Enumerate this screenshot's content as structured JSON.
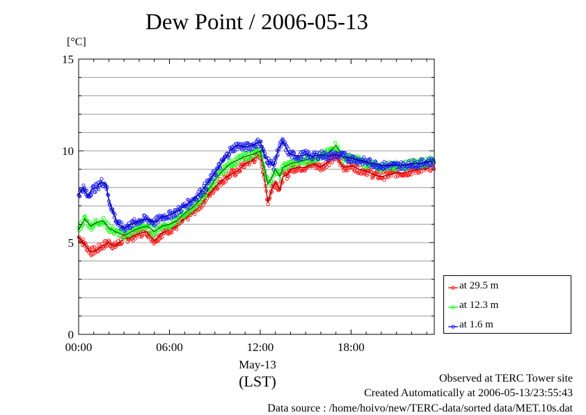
{
  "chart_data": {
    "type": "line",
    "title": "Dew Point / 2006-05-13",
    "ylabel": "[°C]",
    "xlabel_date": "May-13",
    "xlabel_tz": "(LST)",
    "ylim": [
      0,
      15
    ],
    "xlim_hours": [
      0,
      23.5
    ],
    "yticks": [
      0,
      5,
      10,
      15
    ],
    "ytick_labels": [
      "0",
      "5",
      "10",
      "15"
    ],
    "xticks_hours": [
      0,
      6,
      12,
      18
    ],
    "xtick_labels": [
      "00:00",
      "06:00",
      "12:00",
      "18:00"
    ],
    "grid": true,
    "legend_position": "lower-right, outside plot",
    "series": [
      {
        "name": "at 29.5 m",
        "color": "#ff2020",
        "x": [
          0,
          0.5,
          0.8,
          1.2,
          1.5,
          2.0,
          2.4,
          3.0,
          3.5,
          4.0,
          4.5,
          5.0,
          5.5,
          6.0,
          6.5,
          7.0,
          7.5,
          8.0,
          8.5,
          9.0,
          9.5,
          10.0,
          10.5,
          11.0,
          11.5,
          12.0,
          12.3,
          12.5,
          12.8,
          13.0,
          13.3,
          13.5,
          13.8,
          14.0,
          14.5,
          15.0,
          15.5,
          16.0,
          16.5,
          17.0,
          17.5,
          18.0,
          18.5,
          19.0,
          19.5,
          20.0,
          20.5,
          21.0,
          21.5,
          22.0,
          22.5,
          23.0,
          23.4
        ],
        "values": [
          5.3,
          4.8,
          4.5,
          4.6,
          4.8,
          5.0,
          4.8,
          5.2,
          5.3,
          5.5,
          5.6,
          5.1,
          5.5,
          5.7,
          5.9,
          6.3,
          6.6,
          7.0,
          7.5,
          8.0,
          8.4,
          8.7,
          8.9,
          9.3,
          9.5,
          9.8,
          8.4,
          7.2,
          8.0,
          8.3,
          7.9,
          8.6,
          8.7,
          9.0,
          9.1,
          9.1,
          9.3,
          9.1,
          9.4,
          9.7,
          9.1,
          9.2,
          9.0,
          8.9,
          8.7,
          8.6,
          8.7,
          8.8,
          8.8,
          8.9,
          9.0,
          9.0,
          9.2
        ]
      },
      {
        "name": "at 12.3 m",
        "color": "#20ff20",
        "x": [
          0,
          0.4,
          0.8,
          1.2,
          1.6,
          2.0,
          2.4,
          3.0,
          3.5,
          4.0,
          4.5,
          5.0,
          5.5,
          6.0,
          6.5,
          7.0,
          7.5,
          8.0,
          8.5,
          9.0,
          9.5,
          10.0,
          10.5,
          11.0,
          11.5,
          12.0,
          12.3,
          12.5,
          12.8,
          13.0,
          13.3,
          13.5,
          14.0,
          14.5,
          15.0,
          15.5,
          16.0,
          16.5,
          17.0,
          17.5,
          18.0,
          18.5,
          19.0,
          19.5,
          20.0,
          20.5,
          21.0,
          21.5,
          22.0,
          22.5,
          23.0,
          23.4
        ],
        "values": [
          5.7,
          6.3,
          5.9,
          6.1,
          6.2,
          5.8,
          5.6,
          5.4,
          5.6,
          5.8,
          5.9,
          5.6,
          5.9,
          6.0,
          6.2,
          6.6,
          6.9,
          7.3,
          7.8,
          8.4,
          8.9,
          9.3,
          9.5,
          9.7,
          9.8,
          10.0,
          9.0,
          8.2,
          8.6,
          9.0,
          8.6,
          9.1,
          9.3,
          9.4,
          9.5,
          9.6,
          9.7,
          9.9,
          10.3,
          9.6,
          9.6,
          9.5,
          9.3,
          9.2,
          9.1,
          9.2,
          9.2,
          9.2,
          9.3,
          9.3,
          9.4,
          9.5
        ]
      },
      {
        "name": "at 1.6 m",
        "color": "#2020ff",
        "x": [
          0,
          0.3,
          0.6,
          0.9,
          1.2,
          1.5,
          1.8,
          2.0,
          2.3,
          2.6,
          3.0,
          3.5,
          4.0,
          4.5,
          5.0,
          5.5,
          6.0,
          6.5,
          7.0,
          7.5,
          8.0,
          8.5,
          9.0,
          9.5,
          10.0,
          10.5,
          11.0,
          11.5,
          12.0,
          12.3,
          12.6,
          12.9,
          13.2,
          13.5,
          13.8,
          14.0,
          14.5,
          15.0,
          15.5,
          16.0,
          16.5,
          17.0,
          17.5,
          18.0,
          18.5,
          19.0,
          19.5,
          20.0,
          20.5,
          21.0,
          21.5,
          22.0,
          22.5,
          23.0,
          23.4
        ],
        "values": [
          7.6,
          8.0,
          7.5,
          7.9,
          8.0,
          8.3,
          8.2,
          7.3,
          6.6,
          6.0,
          5.8,
          6.0,
          6.2,
          6.3,
          6.1,
          6.4,
          6.5,
          6.7,
          7.0,
          7.3,
          7.7,
          8.2,
          8.8,
          9.4,
          10.0,
          10.3,
          10.2,
          10.3,
          10.5,
          9.7,
          9.4,
          9.2,
          10.1,
          10.5,
          10.0,
          9.8,
          9.7,
          9.8,
          9.7,
          9.8,
          9.7,
          9.8,
          9.7,
          9.6,
          9.5,
          9.4,
          9.3,
          9.2,
          9.2,
          9.2,
          9.2,
          9.3,
          9.3,
          9.4,
          9.4
        ]
      }
    ]
  },
  "footer": {
    "line1": "Observed at TERC Tower site",
    "line2": "Created Automatically at 2006-05-13/23:55:43",
    "line3": "Data source : /home/hoivo/new/TERC-data/sorted  data/MET.10s.dat"
  }
}
